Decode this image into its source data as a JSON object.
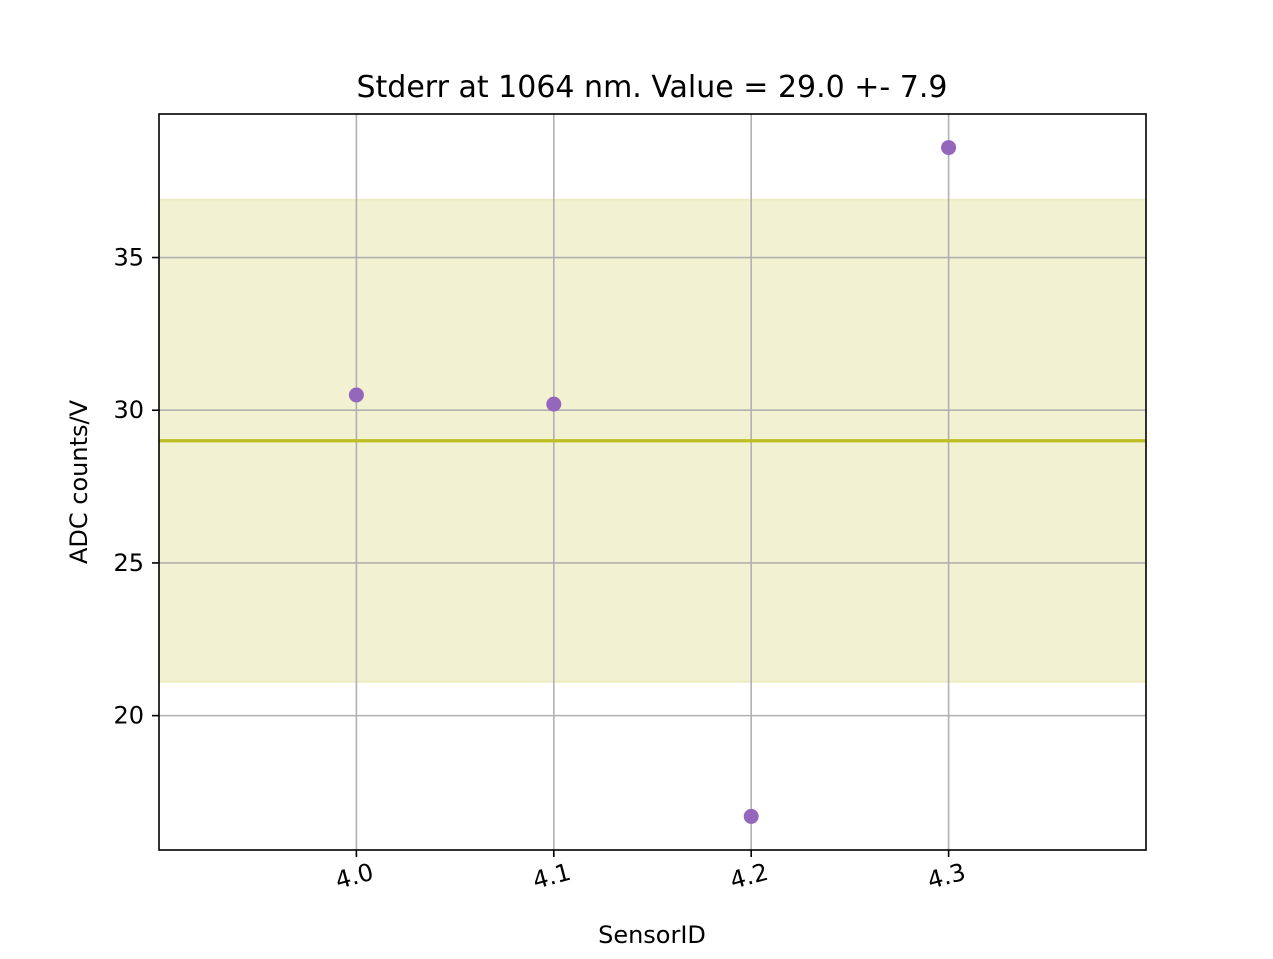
{
  "chart_data": {
    "type": "scatter",
    "title": "Stderr at 1064 nm. Value = 29.0 +- 7.9",
    "xlabel": "SensorID",
    "ylabel": "ADC counts/V",
    "x_ticks": [
      "4.0",
      "4.1",
      "4.2",
      "4.3"
    ],
    "x_tick_values": [
      4.0,
      4.1,
      4.2,
      4.3
    ],
    "y_ticks": [
      "20",
      "25",
      "30",
      "35"
    ],
    "y_tick_values": [
      20,
      25,
      30,
      35
    ],
    "xlim": [
      3.9,
      4.4
    ],
    "ylim": [
      15.6,
      39.7
    ],
    "grid": true,
    "points": [
      {
        "x": 4.0,
        "y": 30.5
      },
      {
        "x": 4.1,
        "y": 30.2
      },
      {
        "x": 4.2,
        "y": 16.7
      },
      {
        "x": 4.3,
        "y": 38.6
      }
    ],
    "mean": 29.0,
    "band": [
      21.1,
      36.9
    ],
    "colors": {
      "points": "#9467bd",
      "mean_line": "#bcbd22",
      "band": "#bcbd22",
      "grid": "#b0b0b0"
    }
  }
}
